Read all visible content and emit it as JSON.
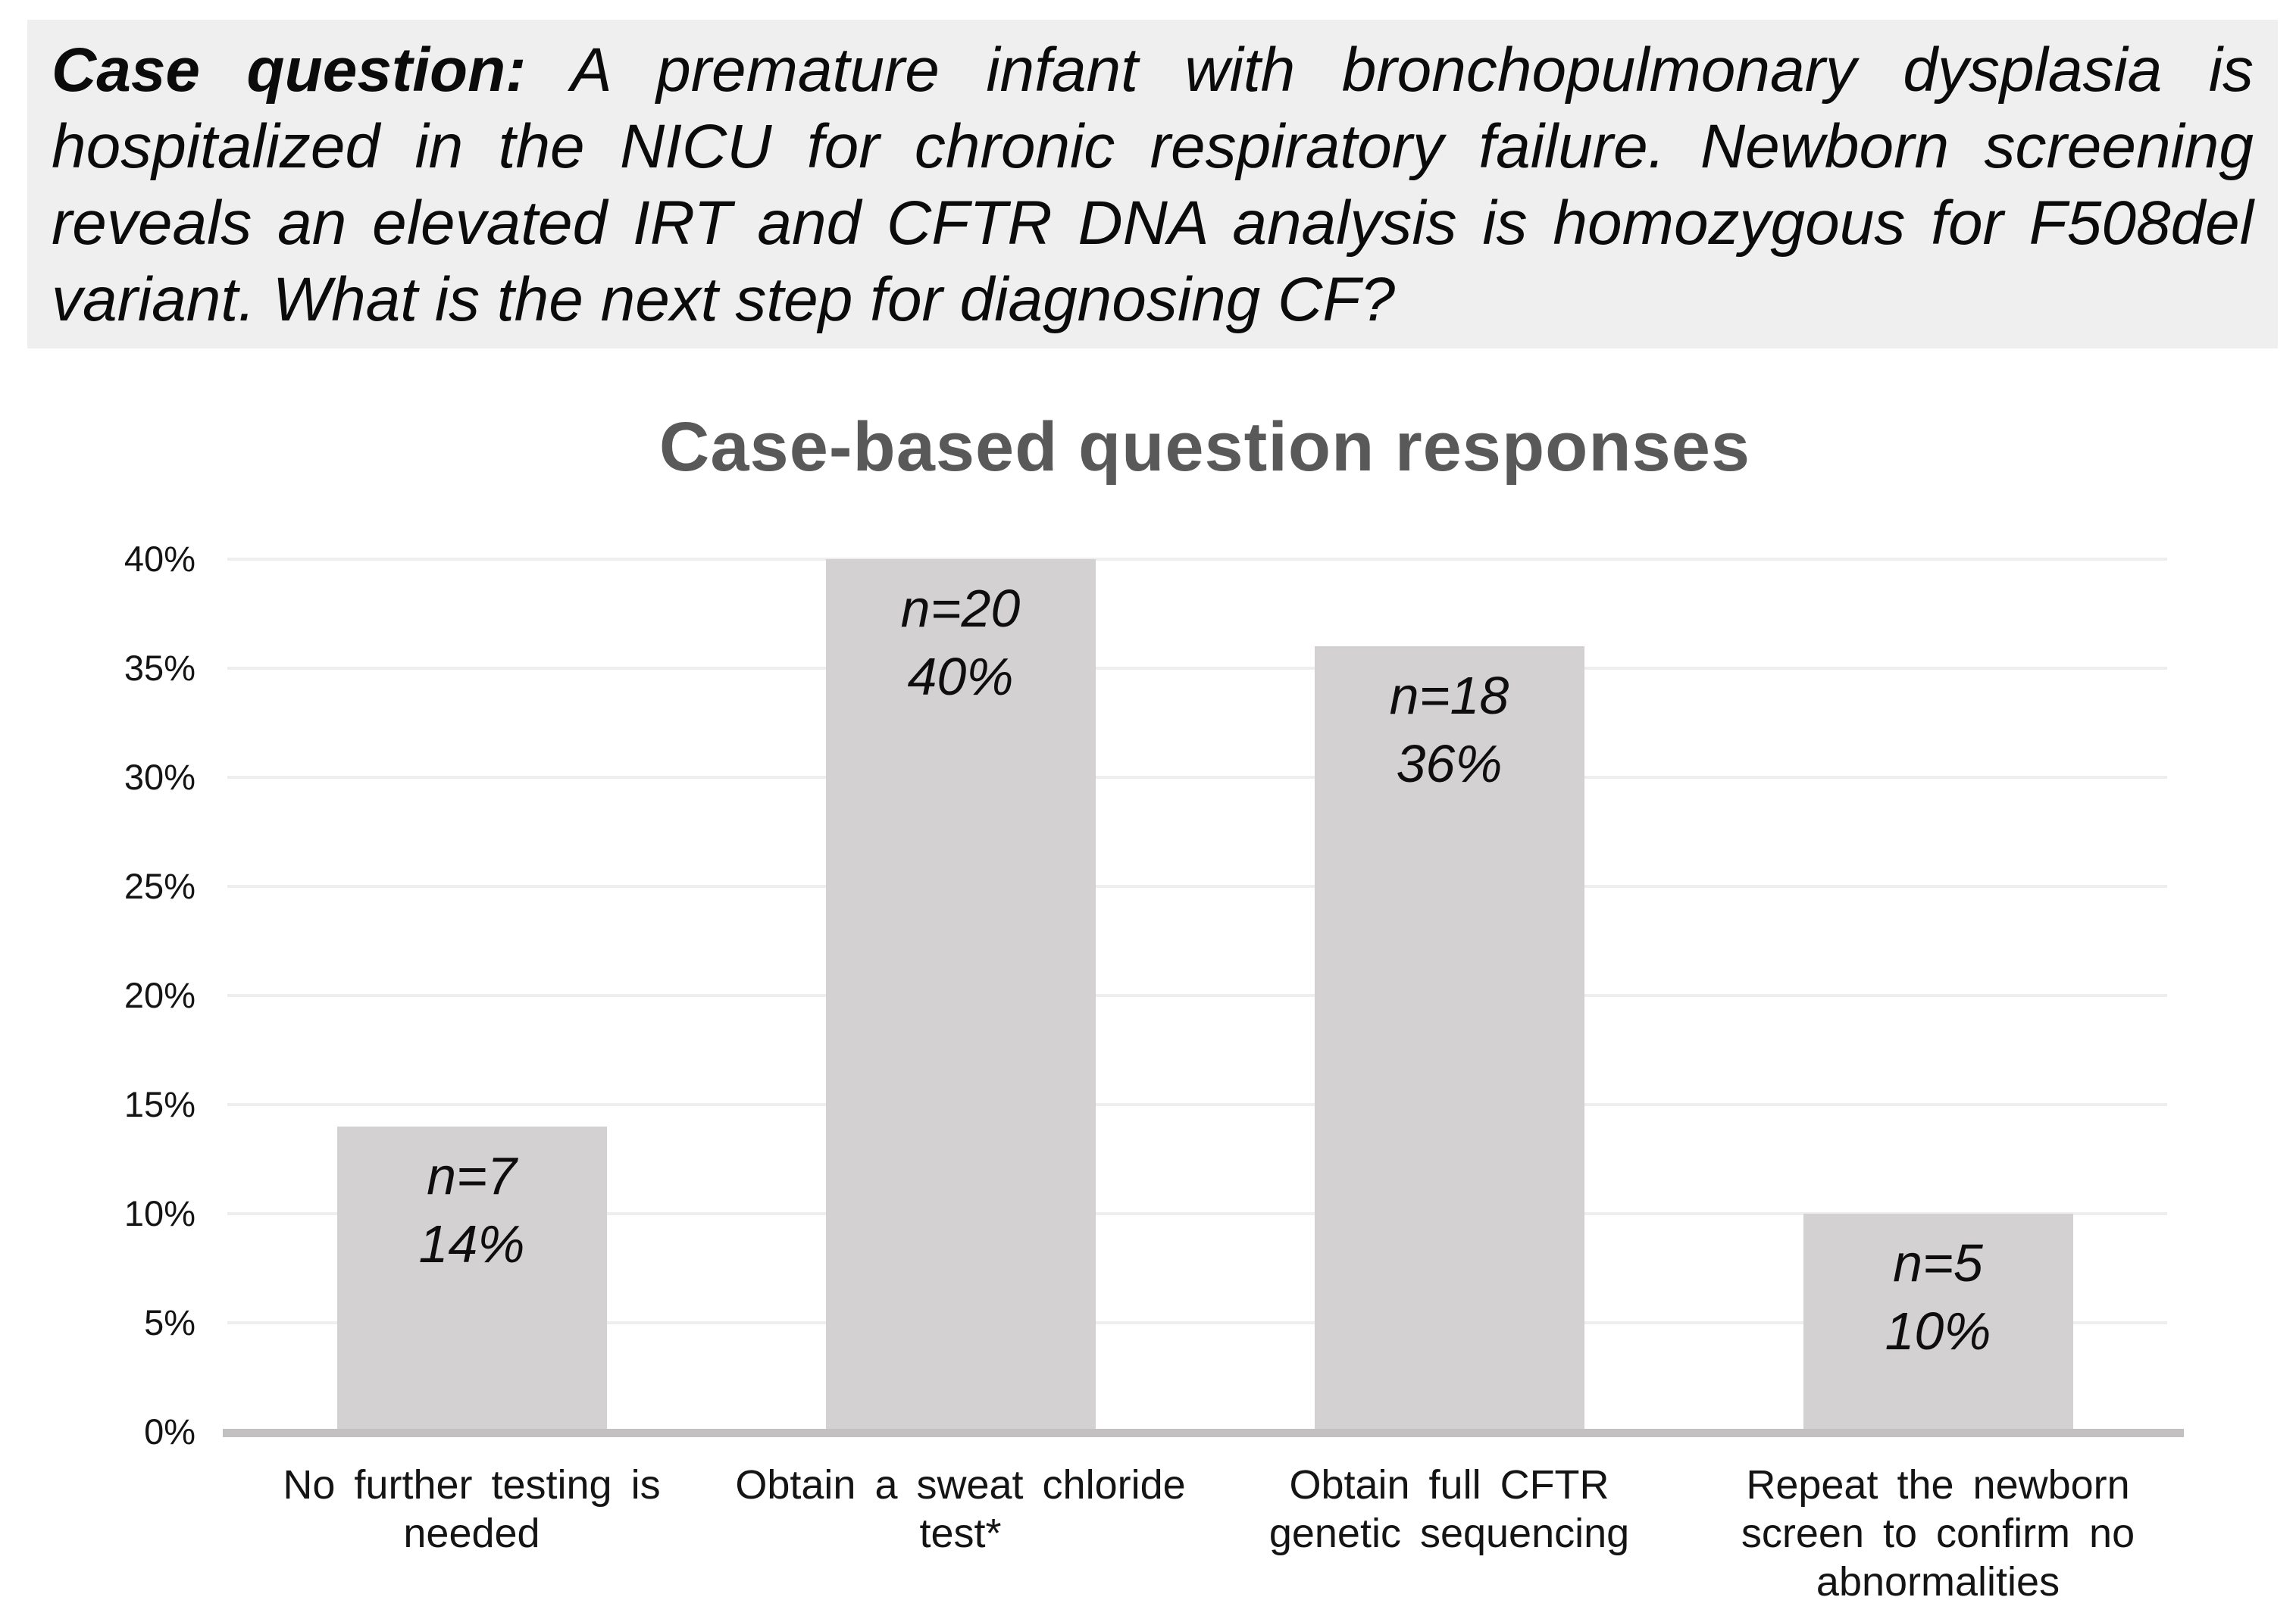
{
  "question": {
    "bold_prefix": "Case question:",
    "body": " A premature infant with bronchopulmonary dysplasia is hospitalized in the NICU for chronic respiratory failure. Newborn screening reveals an elevated IRT and CFTR DNA analysis is homozygous for F508del variant. What is the next step for diagnosing CF?"
  },
  "chart_data": {
    "type": "bar",
    "title": "Case-based question responses",
    "categories": [
      "No further testing is needed",
      "Obtain a sweat chloride test*",
      "Obtain full CFTR genetic sequencing",
      "Repeat the newborn screen to confirm no abnormalities"
    ],
    "category_lines": [
      [
        "No further testing is",
        "needed"
      ],
      [
        "Obtain a sweat chloride",
        "test*"
      ],
      [
        "Obtain full CFTR",
        "genetic sequencing"
      ],
      [
        "Repeat the newborn",
        "screen to confirm no",
        "abnormalities"
      ]
    ],
    "values": [
      14,
      40,
      36,
      10
    ],
    "counts": [
      7,
      20,
      18,
      5
    ],
    "bar_labels": [
      [
        "n=7",
        "14%"
      ],
      [
        "n=20",
        "40%"
      ],
      [
        "n=18",
        "36%"
      ],
      [
        "n=5",
        "10%"
      ]
    ],
    "yticks": [
      "0%",
      "5%",
      "10%",
      "15%",
      "20%",
      "25%",
      "30%",
      "35%",
      "40%"
    ],
    "ylim": [
      0,
      40
    ],
    "xlabel": "",
    "ylabel": "",
    "grid": true,
    "legend": "none",
    "bar_color": "#d3d1d1",
    "title_color": "#595959",
    "question_bg": "#efefef",
    "gridline_color": "#efeeee",
    "baseline_color": "#c2c0c0"
  }
}
